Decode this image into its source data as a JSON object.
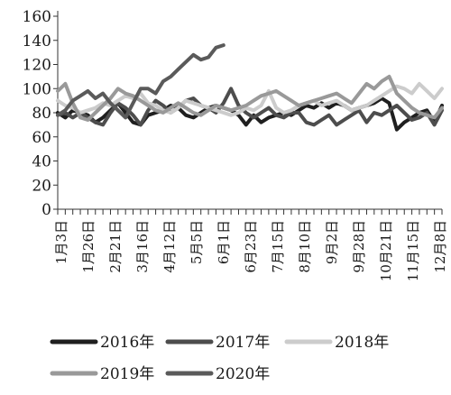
{
  "chart_data": {
    "type": "line",
    "title": "",
    "xlabel": "",
    "ylabel": "",
    "ylim": [
      0,
      160
    ],
    "yticks": [
      0,
      20,
      40,
      60,
      80,
      100,
      120,
      140,
      160
    ],
    "x_tick_labels": [
      "1月3日",
      "1月26日",
      "2月21日",
      "3月16日",
      "4月12日",
      "5月5日",
      "6月1日",
      "6月23日",
      "7月15日",
      "8月10日",
      "9月2日",
      "9月28日",
      "10月21日",
      "11月15日",
      "12月8日"
    ],
    "grid": false,
    "legend_position": "bottom",
    "series": [
      {
        "name": "2016年",
        "color": "#1f1f1f",
        "values": [
          80,
          76,
          82,
          80,
          78,
          72,
          76,
          82,
          88,
          80,
          72,
          70,
          78,
          80,
          82,
          86,
          84,
          78,
          76,
          80,
          84,
          86,
          84,
          82,
          78,
          70,
          78,
          72,
          76,
          78,
          80,
          78,
          82,
          86,
          84,
          88,
          84,
          88,
          86,
          82,
          84,
          86,
          88,
          92,
          88,
          66,
          72,
          76,
          80,
          82,
          72,
          86
        ]
      },
      {
        "name": "2017年",
        "color": "#4d4d4d",
        "values": [
          78,
          80,
          76,
          80,
          76,
          72,
          70,
          80,
          88,
          84,
          78,
          70,
          82,
          90,
          86,
          80,
          84,
          90,
          92,
          86,
          84,
          80,
          88,
          100,
          86,
          80,
          76,
          80,
          84,
          78,
          76,
          80,
          80,
          72,
          70,
          74,
          78,
          70,
          74,
          78,
          82,
          72,
          80,
          78,
          82,
          86,
          80,
          74,
          76,
          80,
          70,
          82
        ]
      },
      {
        "name": "2018年",
        "color": "#cccccc",
        "values": [
          90,
          86,
          84,
          80,
          82,
          84,
          88,
          86,
          90,
          94,
          92,
          96,
          88,
          86,
          82,
          80,
          84,
          90,
          88,
          86,
          84,
          82,
          80,
          78,
          80,
          84,
          82,
          86,
          98,
          84,
          80,
          82,
          86,
          88,
          90,
          86,
          88,
          90,
          86,
          82,
          84,
          86,
          90,
          94,
          98,
          102,
          100,
          96,
          104,
          98,
          92,
          100
        ]
      },
      {
        "name": "2019年",
        "color": "#999999",
        "values": [
          98,
          104,
          88,
          76,
          74,
          80,
          86,
          92,
          100,
          96,
          94,
          90,
          86,
          82,
          80,
          84,
          88,
          84,
          80,
          78,
          82,
          86,
          84,
          82,
          84,
          86,
          90,
          94,
          96,
          98,
          94,
          90,
          86,
          88,
          90,
          92,
          94,
          96,
          92,
          88,
          96,
          104,
          100,
          106,
          110,
          96,
          90,
          84,
          80,
          78,
          76,
          84
        ]
      },
      {
        "name": "2020年",
        "color": "#5a5a5a",
        "values": [
          78,
          82,
          90,
          94,
          98,
          92,
          96,
          88,
          82,
          76,
          88,
          100,
          100,
          96,
          106,
          110,
          116,
          122,
          128,
          124,
          126,
          134,
          136
        ]
      }
    ]
  }
}
